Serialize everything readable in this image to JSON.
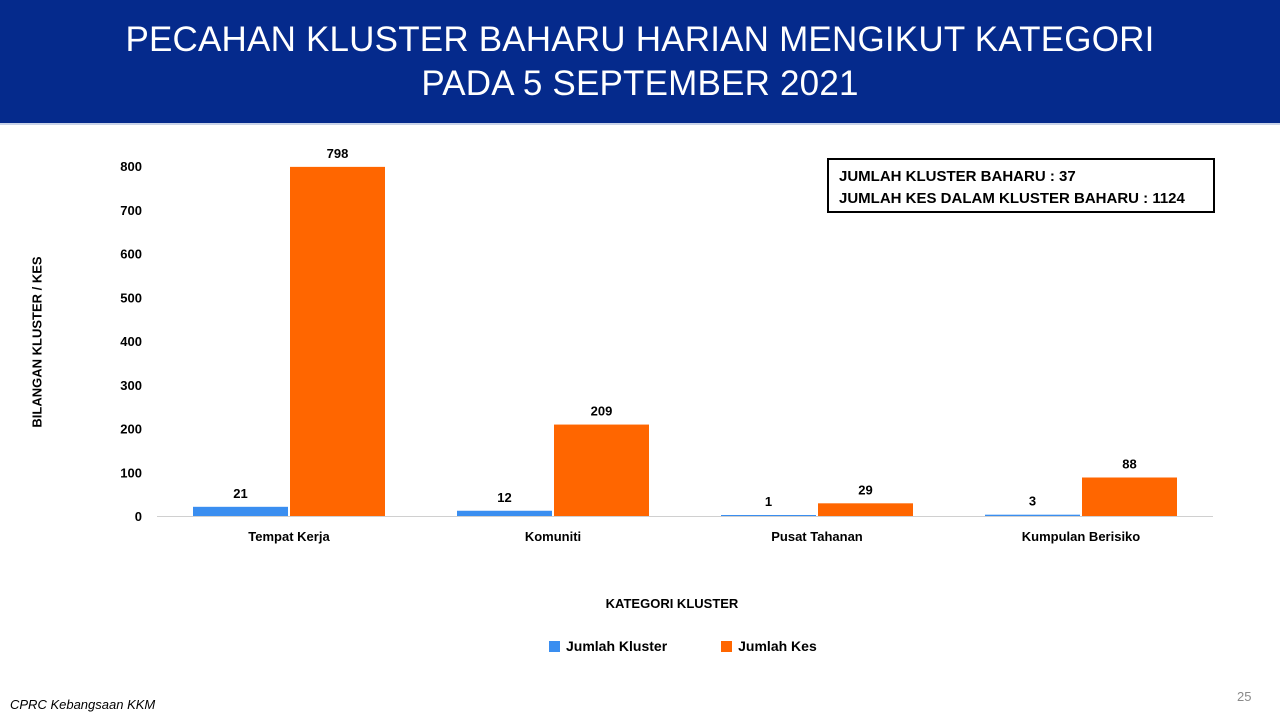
{
  "header": {
    "title_line1": "PECAHAN KLUSTER BAHARU HARIAN MENGIKUT KATEGORI",
    "title_line2": "PADA 5 SEPTEMBER 2021"
  },
  "infobox": {
    "line1": "JUMLAH KLUSTER BAHARU : 37",
    "line2": "JUMLAH KES DALAM KLUSTER BAHARU : 1124"
  },
  "chart_data": {
    "type": "bar",
    "title": "PECAHAN KLUSTER BAHARU HARIAN MENGIKUT KATEGORI PADA 5 SEPTEMBER 2021",
    "categories": [
      "Tempat Kerja",
      "Komuniti",
      "Pusat Tahanan",
      "Kumpulan Berisiko"
    ],
    "series": [
      {
        "name": "Jumlah Kluster",
        "values": [
          21,
          12,
          1,
          3
        ],
        "color": "#3a8ef0"
      },
      {
        "name": "Jumlah Kes",
        "values": [
          798,
          209,
          29,
          88
        ],
        "color": "#ff6600"
      }
    ],
    "xlabel": "KATEGORI KLUSTER",
    "ylabel": "BILANGAN KLUSTER / KES",
    "ylim": [
      0,
      800
    ],
    "yticks": [
      0,
      100,
      200,
      300,
      400,
      500,
      600,
      700,
      800
    ],
    "grid": false,
    "legend": "bottom-center",
    "data_labels": true
  },
  "footer": {
    "source": "CPRC Kebangsaan KKM",
    "page_number": "25"
  }
}
